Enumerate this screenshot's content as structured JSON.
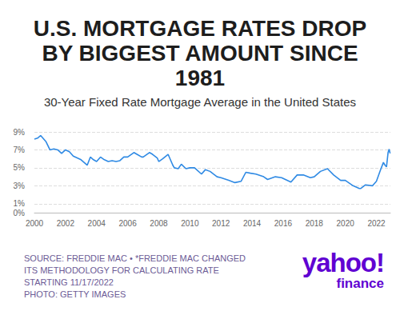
{
  "chart_data": {
    "type": "line",
    "title": "U.S. MORTGAGE RATES DROP BY BIGGEST AMOUNT SINCE 1981",
    "subtitle": "30-Year Fixed Rate Mortgage Average in the United States",
    "source": [
      "SOURCE: FREDDIE MAC • *FREDDIE MAC CHANGED",
      "ITS METHODOLOGY FOR CALCULATING RATE",
      "STARTING 11/17/2022",
      "PHOTO: GETTY IMAGES"
    ],
    "logo": "yahoo!",
    "logo_subtitle": "finance",
    "color": "#2f8ae4",
    "x": [
      2000.0,
      2000.2,
      2000.4,
      2000.75,
      2001.0,
      2001.25,
      2001.5,
      2001.75,
      2002.0,
      2002.25,
      2002.5,
      2002.75,
      2003.0,
      2003.4,
      2003.6,
      2003.8,
      2004.0,
      2004.25,
      2004.5,
      2004.75,
      2005.0,
      2005.25,
      2005.5,
      2005.75,
      2006.0,
      2006.4,
      2006.6,
      2006.9,
      2007.0,
      2007.4,
      2007.6,
      2007.9,
      2008.0,
      2008.25,
      2008.6,
      2008.9,
      2009.0,
      2009.25,
      2009.45,
      2009.75,
      2010.0,
      2010.3,
      2010.75,
      2011.0,
      2011.3,
      2011.75,
      2012.0,
      2012.5,
      2012.9,
      2013.3,
      2013.6,
      2013.9,
      2014.25,
      2014.75,
      2015.0,
      2015.5,
      2015.9,
      2016.5,
      2016.9,
      2017.3,
      2017.75,
      2018.0,
      2018.4,
      2018.85,
      2019.25,
      2019.7,
      2020.0,
      2020.5,
      2020.9,
      2021.0,
      2021.3,
      2021.75,
      2022.0,
      2022.25,
      2022.45,
      2022.55,
      2022.65,
      2022.75,
      2022.82,
      2022.88
    ],
    "values": [
      8.2,
      8.3,
      8.6,
      7.9,
      7.0,
      7.1,
      7.0,
      6.6,
      7.0,
      6.8,
      6.3,
      6.1,
      5.9,
      5.3,
      6.2,
      5.9,
      5.7,
      6.2,
      5.9,
      5.7,
      5.8,
      5.7,
      5.8,
      6.2,
      6.2,
      6.7,
      6.5,
      6.2,
      6.2,
      6.7,
      6.5,
      6.1,
      5.7,
      6.0,
      6.5,
      5.3,
      5.0,
      4.9,
      5.4,
      4.9,
      5.0,
      5.0,
      4.3,
      4.8,
      4.6,
      4.0,
      3.9,
      3.6,
      3.35,
      3.5,
      4.5,
      4.4,
      4.3,
      4.0,
      3.7,
      4.0,
      3.9,
      3.4,
      4.2,
      4.2,
      3.9,
      4.0,
      4.6,
      4.9,
      4.2,
      3.6,
      3.6,
      3.0,
      2.7,
      2.7,
      3.1,
      3.0,
      3.5,
      4.7,
      5.6,
      5.3,
      5.1,
      6.7,
      7.08,
      6.6
    ],
    "xlim": [
      2000,
      2022.9
    ],
    "xticks": [
      2000,
      2002,
      2004,
      2006,
      2008,
      2010,
      2012,
      2014,
      2016,
      2018,
      2020,
      2022
    ],
    "ylim": [
      0,
      9
    ],
    "yticks": [
      {
        "value": 0,
        "label": "0%"
      },
      {
        "value": 1,
        "label": "1%"
      },
      {
        "value": 3,
        "label": "3%"
      },
      {
        "value": 5,
        "label": "5%"
      },
      {
        "value": 7,
        "label": "7%"
      },
      {
        "value": 9,
        "label": "9%"
      }
    ],
    "grid": true
  }
}
